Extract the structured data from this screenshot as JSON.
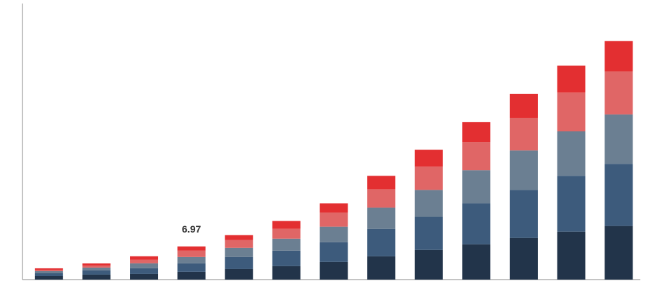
{
  "chart_data": {
    "type": "stacked-bar",
    "categories": [
      null,
      null,
      null,
      null,
      null,
      null,
      null,
      null,
      null,
      null,
      null,
      null,
      null
    ],
    "series": [
      {
        "color": "#22344a",
        "values": [
          0.74,
          1.04,
          1.19,
          1.64,
          2.22,
          2.82,
          3.71,
          4.89,
          6.23,
          7.42,
          8.75,
          10.08,
          11.27
        ]
      },
      {
        "color": "#3d5b7c",
        "values": [
          0.59,
          0.89,
          1.19,
          1.78,
          2.52,
          3.26,
          4.15,
          5.78,
          6.97,
          8.6,
          10.08,
          11.72,
          13.05
        ]
      },
      {
        "color": "#6b7f92",
        "values": [
          0.44,
          0.59,
          1.04,
          1.33,
          1.93,
          2.52,
          3.26,
          4.45,
          5.64,
          6.97,
          8.3,
          9.34,
          10.38
        ]
      },
      {
        "color": "#e06666",
        "values": [
          0.3,
          0.44,
          0.74,
          1.33,
          1.63,
          2.08,
          2.97,
          3.86,
          4.89,
          5.93,
          6.82,
          8.16,
          9.05
        ]
      },
      {
        "color": "#e32f31",
        "values": [
          0.3,
          0.44,
          0.74,
          0.89,
          1.04,
          1.63,
          1.93,
          2.82,
          3.56,
          4.15,
          5.04,
          5.64,
          6.38
        ]
      }
    ],
    "total_labels": [
      null,
      null,
      null,
      "6.97",
      null,
      null,
      null,
      null,
      null,
      null,
      null,
      null,
      null
    ],
    "ylim": [
      0,
      58
    ]
  }
}
